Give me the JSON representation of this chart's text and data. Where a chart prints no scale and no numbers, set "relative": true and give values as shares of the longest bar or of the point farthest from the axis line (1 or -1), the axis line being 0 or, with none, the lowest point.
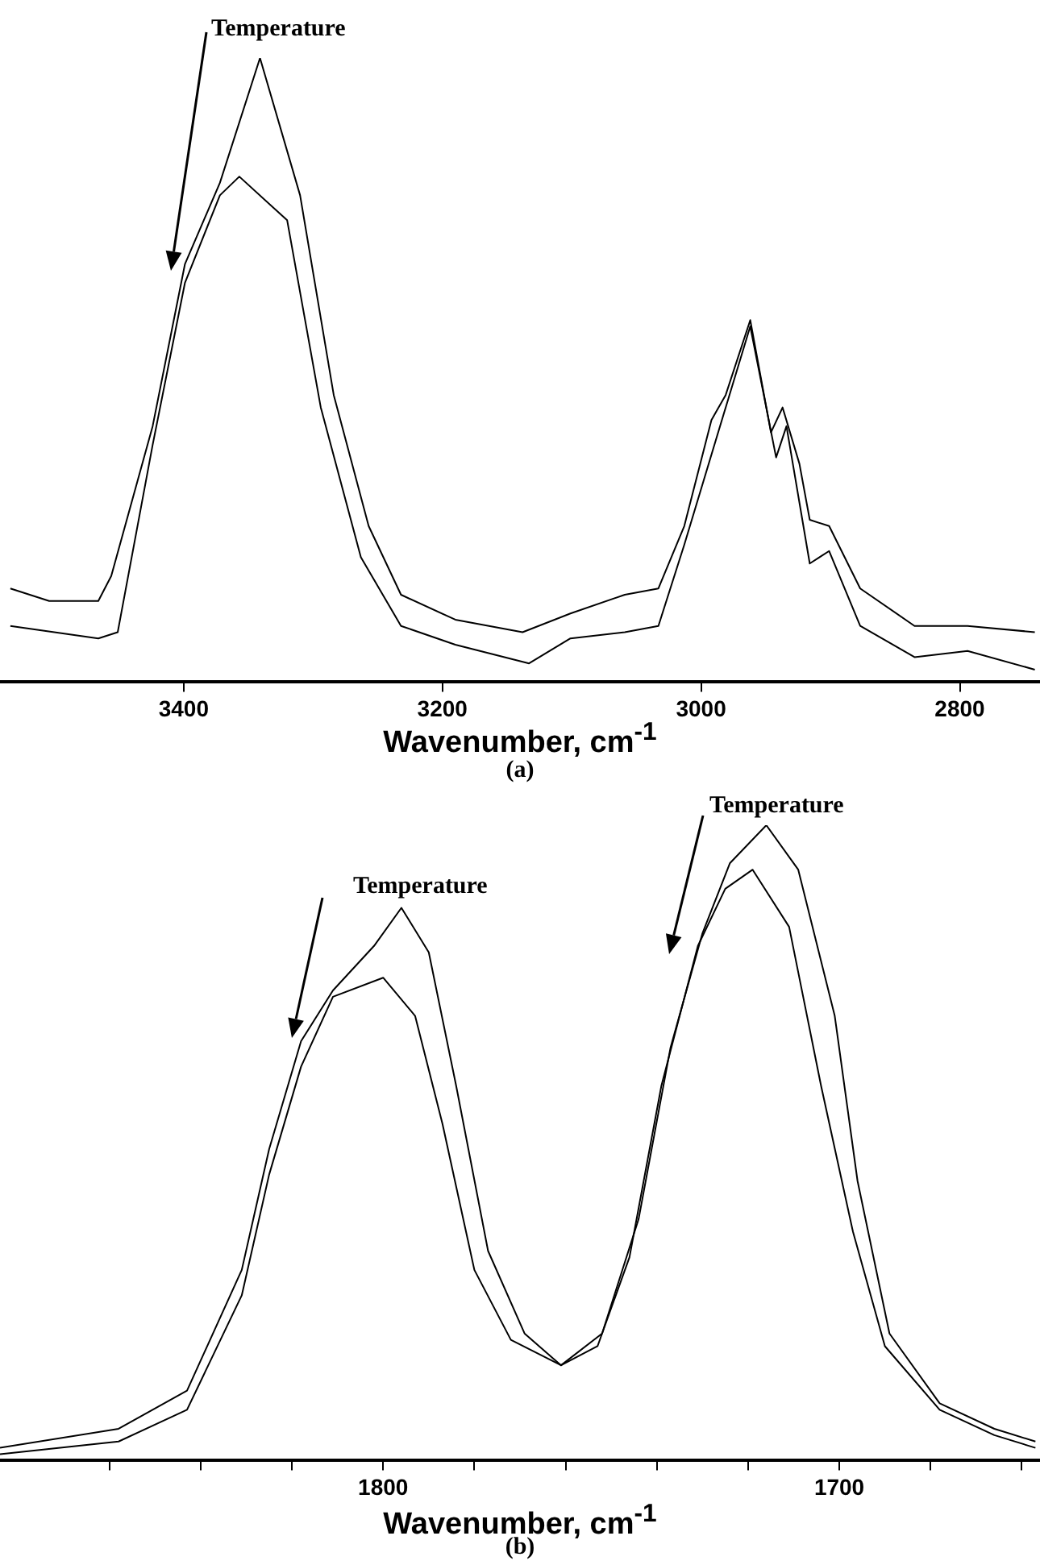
{
  "chart_data": [
    {
      "type": "line",
      "title": "(a)",
      "xlabel": "Wavenumber, cm$^{-1}$",
      "annotations": [
        "Temperature"
      ],
      "relative": true,
      "legend": false,
      "marker": "none",
      "xlim": [
        3542,
        2738
      ],
      "xticks": [
        3400,
        3200,
        3000,
        2800
      ],
      "series": [
        {
          "color": "#000000",
          "x": [
            3534,
            3504,
            3466,
            3456,
            3424,
            3399,
            3372,
            3341,
            3310,
            3284,
            3257,
            3232,
            3190,
            3138,
            3101,
            3059,
            3033,
            3013,
            2992,
            2981,
            2962,
            2946,
            2937,
            2924,
            2916,
            2901,
            2877,
            2835,
            2794,
            2742
          ],
          "values": [
            0.15,
            0.13,
            0.13,
            0.17,
            0.41,
            0.67,
            0.8,
            1,
            0.78,
            0.46,
            0.25,
            0.14,
            0.1,
            0.08,
            0.11,
            0.14,
            0.15,
            0.25,
            0.42,
            0.46,
            0.58,
            0.4,
            0.44,
            0.35,
            0.26,
            0.25,
            0.15,
            0.09,
            0.09,
            0.08
          ]
        },
        {
          "color": "#000000",
          "x": [
            3534,
            3466,
            3451,
            3424,
            3399,
            3372,
            3357,
            3320,
            3294,
            3263,
            3232,
            3190,
            3133,
            3101,
            3059,
            3033,
            3013,
            2981,
            2962,
            2942,
            2934,
            2916,
            2901,
            2877,
            2835,
            2794,
            2742
          ],
          "values": [
            0.09,
            0.07,
            0.08,
            0.38,
            0.64,
            0.78,
            0.81,
            0.74,
            0.44,
            0.2,
            0.09,
            0.06,
            0.03,
            0.07,
            0.08,
            0.09,
            0.22,
            0.44,
            0.57,
            0.36,
            0.41,
            0.19,
            0.21,
            0.09,
            0.04,
            0.05,
            0.02
          ]
        }
      ]
    },
    {
      "type": "line",
      "title": "(b)",
      "xlabel": "Wavenumber, cm$^{-1}$",
      "annotations": [
        "Temperature",
        "Temperature"
      ],
      "relative": true,
      "legend": false,
      "marker": "none",
      "xlim": [
        1884,
        1656
      ],
      "xticks": [
        {
          "value": 1860,
          "label": null
        },
        {
          "value": 1840,
          "label": null
        },
        {
          "value": 1820,
          "label": null
        },
        1800,
        {
          "value": 1780,
          "label": null
        },
        {
          "value": 1760,
          "label": null
        },
        {
          "value": 1740,
          "label": null
        },
        {
          "value": 1720,
          "label": null
        },
        1700,
        {
          "value": 1680,
          "label": null
        },
        {
          "value": 1660,
          "label": null
        }
      ],
      "series": [
        {
          "color": "#000000",
          "x": [
            1884,
            1858,
            1843,
            1831,
            1825,
            1818,
            1811,
            1802,
            1796,
            1790,
            1784,
            1777,
            1769,
            1761,
            1752,
            1744,
            1737,
            1730,
            1724,
            1716,
            1709,
            1701,
            1696,
            1689,
            1678,
            1666,
            1657
          ],
          "values": [
            0.02,
            0.05,
            0.11,
            0.3,
            0.49,
            0.66,
            0.74,
            0.81,
            0.87,
            0.8,
            0.59,
            0.33,
            0.2,
            0.15,
            0.2,
            0.38,
            0.65,
            0.83,
            0.94,
            1,
            0.93,
            0.7,
            0.44,
            0.2,
            0.09,
            0.05,
            0.03
          ]
        },
        {
          "color": "#000000",
          "x": [
            1884,
            1858,
            1843,
            1831,
            1825,
            1818,
            1811,
            1800,
            1793,
            1787,
            1780,
            1772,
            1761,
            1753,
            1746,
            1739,
            1731,
            1725,
            1719,
            1711,
            1704,
            1697,
            1690,
            1678,
            1666,
            1657
          ],
          "values": [
            0.01,
            0.03,
            0.08,
            0.26,
            0.45,
            0.62,
            0.73,
            0.76,
            0.7,
            0.53,
            0.3,
            0.19,
            0.15,
            0.18,
            0.32,
            0.59,
            0.81,
            0.9,
            0.93,
            0.84,
            0.59,
            0.36,
            0.18,
            0.08,
            0.04,
            0.02
          ]
        }
      ]
    }
  ]
}
